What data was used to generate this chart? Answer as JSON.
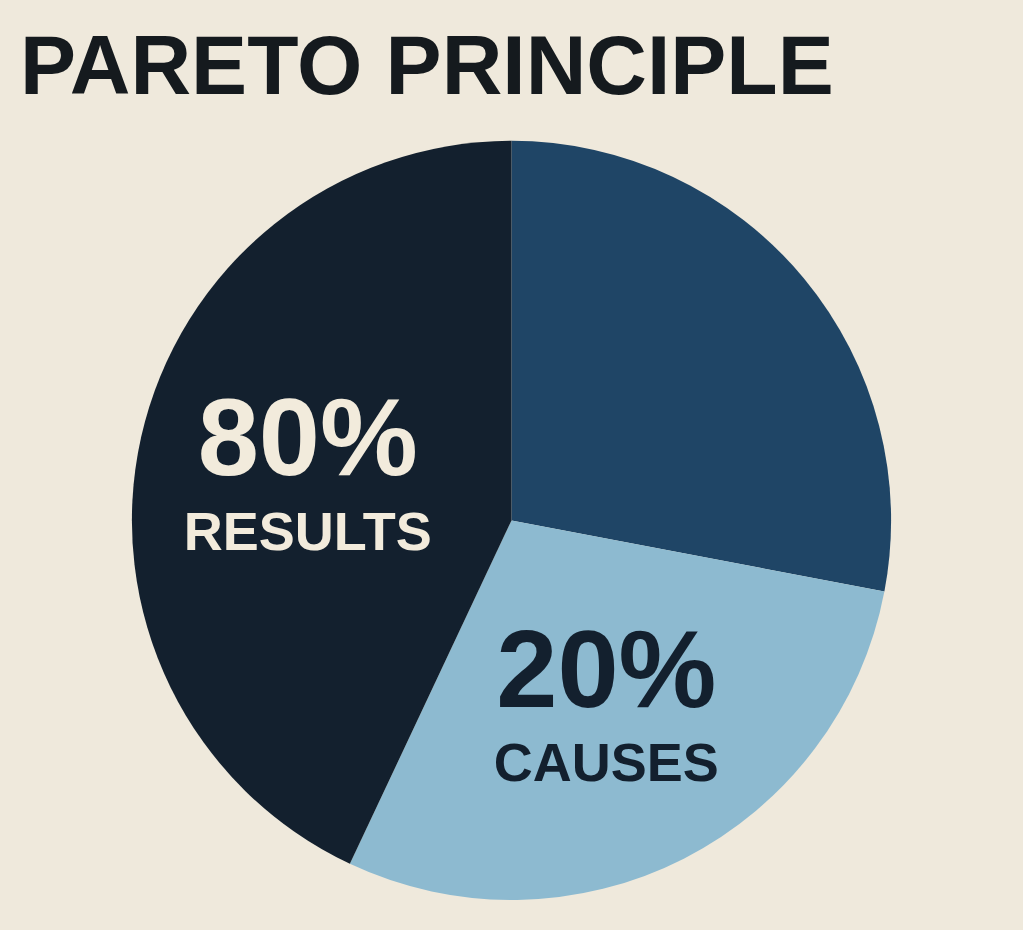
{
  "chart_data": {
    "type": "pie",
    "title": "PARETO PRINCIPLE",
    "categories": [
      null,
      "CAUSES",
      "RESULTS"
    ],
    "values": [
      28,
      29,
      43
    ],
    "annotations": [
      "20%",
      "80%"
    ],
    "colors": [
      "#1f4566",
      "#8dbad0",
      "#13202e"
    ],
    "legend": false
  }
}
